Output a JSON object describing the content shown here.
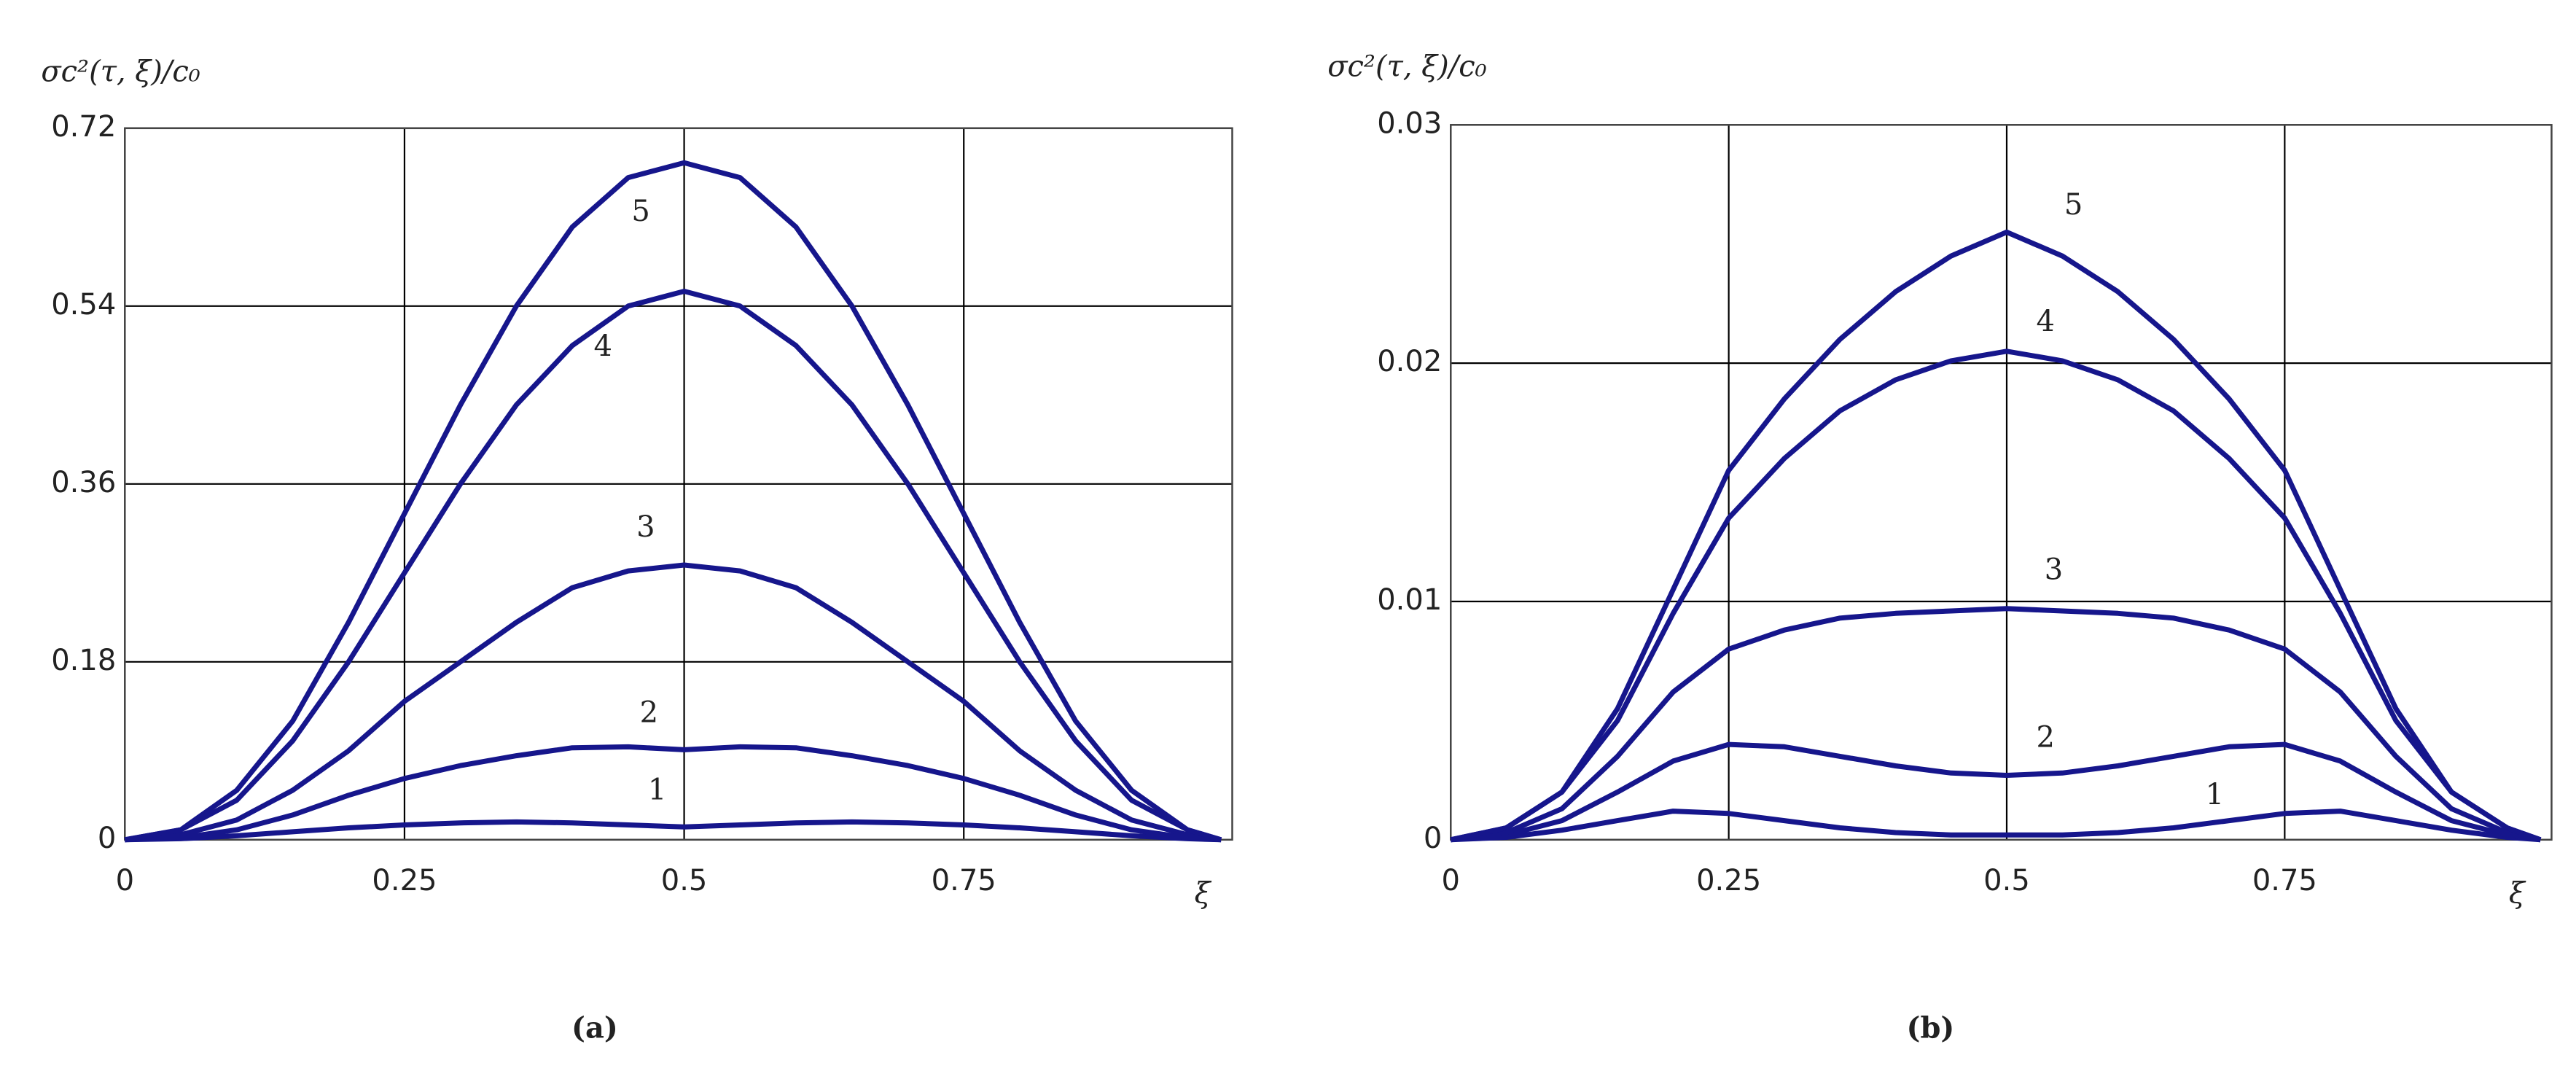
{
  "chart_data": [
    {
      "type": "line",
      "title": "(a)",
      "y_label": "σc²(τ, ξ)/c₀",
      "x_label": "ξ",
      "x": [
        0,
        0.05,
        0.1,
        0.15,
        0.2,
        0.25,
        0.3,
        0.35,
        0.4,
        0.45,
        0.5,
        0.55,
        0.6,
        0.65,
        0.7,
        0.75,
        0.8,
        0.85,
        0.9,
        0.95,
        0.98
      ],
      "xlim": [
        0,
        0.99
      ],
      "xticks": [
        0,
        0.25,
        0.5,
        0.75
      ],
      "ylim": [
        0,
        0.72
      ],
      "yticks": [
        0,
        0.18,
        0.36,
        0.54,
        0.72
      ],
      "grid": true,
      "series": [
        {
          "name": "1",
          "color": "#16168c",
          "values": [
            0,
            0.001,
            0.004,
            0.008,
            0.012,
            0.015,
            0.017,
            0.018,
            0.017,
            0.015,
            0.013,
            0.015,
            0.017,
            0.018,
            0.017,
            0.015,
            0.012,
            0.008,
            0.004,
            0.001,
            0
          ]
        },
        {
          "name": "2",
          "color": "#16168c",
          "values": [
            0,
            0.002,
            0.01,
            0.025,
            0.045,
            0.062,
            0.075,
            0.085,
            0.093,
            0.094,
            0.091,
            0.094,
            0.093,
            0.085,
            0.075,
            0.062,
            0.045,
            0.025,
            0.01,
            0.002,
            0
          ]
        },
        {
          "name": "3",
          "color": "#16168c",
          "values": [
            0,
            0.005,
            0.02,
            0.05,
            0.09,
            0.14,
            0.18,
            0.22,
            0.255,
            0.272,
            0.278,
            0.272,
            0.255,
            0.22,
            0.18,
            0.14,
            0.09,
            0.05,
            0.02,
            0.005,
            0
          ]
        },
        {
          "name": "4",
          "color": "#16168c",
          "values": [
            0,
            0.01,
            0.04,
            0.1,
            0.18,
            0.27,
            0.36,
            0.44,
            0.5,
            0.54,
            0.555,
            0.54,
            0.5,
            0.44,
            0.36,
            0.27,
            0.18,
            0.1,
            0.04,
            0.01,
            0
          ]
        },
        {
          "name": "5",
          "color": "#16168c",
          "values": [
            0,
            0.01,
            0.05,
            0.12,
            0.22,
            0.33,
            0.44,
            0.54,
            0.62,
            0.67,
            0.685,
            0.67,
            0.62,
            0.54,
            0.44,
            0.33,
            0.22,
            0.12,
            0.05,
            0.01,
            0
          ]
        }
      ]
    },
    {
      "type": "line",
      "title": "(b)",
      "y_label": "σc²(τ, ξ)/c₀",
      "x_label": "ξ",
      "x": [
        0,
        0.05,
        0.1,
        0.15,
        0.2,
        0.25,
        0.3,
        0.35,
        0.4,
        0.45,
        0.5,
        0.55,
        0.6,
        0.65,
        0.7,
        0.75,
        0.8,
        0.85,
        0.9,
        0.95,
        0.98
      ],
      "xlim": [
        0,
        0.99
      ],
      "xticks": [
        0,
        0.25,
        0.5,
        0.75
      ],
      "ylim": [
        0,
        0.03
      ],
      "yticks": [
        0,
        0.01,
        0.02,
        0.03
      ],
      "grid": true,
      "series": [
        {
          "name": "1",
          "color": "#16168c",
          "values": [
            0,
            0.0001,
            0.0004,
            0.0008,
            0.0012,
            0.0011,
            0.0008,
            0.0005,
            0.0003,
            0.0002,
            0.0002,
            0.0002,
            0.0003,
            0.0005,
            0.0008,
            0.0011,
            0.0012,
            0.0008,
            0.0004,
            0.0001,
            0
          ]
        },
        {
          "name": "2",
          "color": "#16168c",
          "values": [
            0,
            0.0002,
            0.0008,
            0.002,
            0.0033,
            0.004,
            0.0039,
            0.0035,
            0.0031,
            0.0028,
            0.0027,
            0.0028,
            0.0031,
            0.0035,
            0.0039,
            0.004,
            0.0033,
            0.002,
            0.0008,
            0.0002,
            0
          ]
        },
        {
          "name": "3",
          "color": "#16168c",
          "values": [
            0,
            0.0003,
            0.0013,
            0.0035,
            0.0062,
            0.008,
            0.0088,
            0.0093,
            0.0095,
            0.0096,
            0.0097,
            0.0096,
            0.0095,
            0.0093,
            0.0088,
            0.008,
            0.0062,
            0.0035,
            0.0013,
            0.0003,
            0
          ]
        },
        {
          "name": "4",
          "color": "#16168c",
          "values": [
            0,
            0.0005,
            0.002,
            0.005,
            0.0095,
            0.0135,
            0.016,
            0.018,
            0.0193,
            0.0201,
            0.0205,
            0.0201,
            0.0193,
            0.018,
            0.016,
            0.0135,
            0.0095,
            0.005,
            0.002,
            0.0005,
            0
          ]
        },
        {
          "name": "5",
          "color": "#16168c",
          "values": [
            0,
            0.0005,
            0.002,
            0.0055,
            0.0105,
            0.0155,
            0.0185,
            0.021,
            0.023,
            0.0245,
            0.0255,
            0.0245,
            0.023,
            0.021,
            0.0185,
            0.0155,
            0.0105,
            0.0055,
            0.002,
            0.0005,
            0
          ]
        }
      ]
    }
  ]
}
